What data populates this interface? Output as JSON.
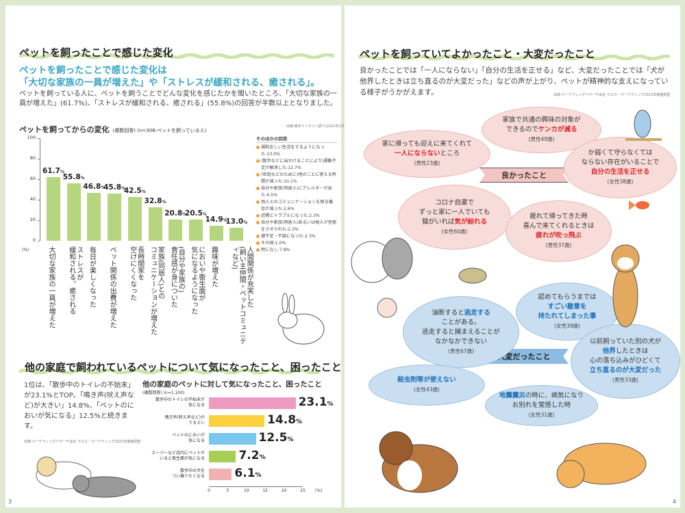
{
  "left": {
    "title": "ペットを飼ったことで感じた変化",
    "lead": "ペットを飼ったことで感じた変化は\n「大切な家族の一員が増えた」や「ストレスが緩和される、癒される」。",
    "body": "ペットを飼っている人に、ペットを飼うことでどんな変化を感じたかを聞いたところ、「大切な家族の一員が増えた」(61.7%)、「ストレスが緩和される、癒される」(55.8%)の回答が半数以上となりました。",
    "source": "出典:楽天インサイト調べ(2021年1月)",
    "chart_title": "ペットを飼ってからの変化",
    "chart_note": "(複数回答) (n=308:ペットを飼っている人)",
    "other_title": "そのほかの回答",
    "other_items": [
      "規則正しい生活をするようになった:13.0%",
      "(散歩などに出かけることにより)運動不足が解消した:12.7%",
      "(世話などのために)他のことに使える時間が減った:10.1%",
      "自分や家族(同居人)にアレルギーが出た:4.5%",
      "他人とのコミュニケーションを取る機会が減った:2.6%",
      "近隣とトラブルになった:2.3%",
      "自分や家族(同居人)あるいは他人が怪我をさせられた:2.3%",
      "寝不足・不調になった:2.3%",
      "その他:1.0%",
      "特になし:7.8%"
    ],
    "section2_title": "他の家庭で飼われているペットについて気になったこと、困ったこと",
    "section2_body": "1位は、「散歩中のトイレの不始末」が23.1%とTOP。「鳴き声(吠え声など)が大きい」14.8%、「ペットのにおいが気になる」12.5%と続きます。",
    "section2_source": "出典:マーケティングリサーチ会社 クロス・マーケティング2021年実施調査",
    "chart2_title": "他の家庭のペットに対して気になったこと、困ったこと",
    "chart2_note": "(複数回答) (n=1,100)",
    "page_number": "3"
  },
  "chart_data": [
    {
      "type": "bar",
      "title": "ペットを飼ってからの変化",
      "ylabel": "(%)",
      "ylim": [
        0,
        100
      ],
      "yticks": [
        "0",
        "20",
        "40",
        "60",
        "80",
        "100"
      ],
      "categories": [
        "大切な家族の一員が増えた",
        "ストレスが\n緩和される、癒される",
        "毎日が楽しくなった",
        "ペット関係の出費が増えた",
        "長時間家を\n空けにくくなった",
        "家族(同居人)との\nコミュニケーションが増えた",
        "(自分や家族の)\n責任感が身についた",
        "においや衛生面が\n気になるようになった",
        "趣味が増えた",
        "人間関係が充実した\n(飼い主仲間・ペットコミュニティなど)"
      ],
      "values": [
        61.7,
        55.8,
        46.8,
        45.8,
        42.5,
        32.8,
        20.8,
        20.5,
        14.9,
        13.0
      ],
      "labels": [
        "61.7",
        "55.8",
        "46.8",
        "45.8",
        "42.5",
        "32.8",
        "20.8",
        "20.5",
        "14.9",
        "13.0"
      ],
      "unit": "%",
      "color": "#b5d67f"
    },
    {
      "type": "bar",
      "orientation": "horizontal",
      "title": "他の家庭のペットに対して気になったこと、困ったこと",
      "xlabel": "(%)",
      "xlim": [
        0,
        25
      ],
      "xticks": [
        "0",
        "5",
        "10",
        "15",
        "20",
        "25"
      ],
      "categories": [
        "散歩中のトイレの不始末が\n気になる",
        "鳴き声(吠え声など)が\nうるさい",
        "ペットのにおいが\n気になる",
        "スーパーなど店内にペットが\nいると衛生面が気になる",
        "散歩中の犬を\nつい撫でたくなる"
      ],
      "values": [
        23.1,
        14.8,
        12.5,
        7.2,
        6.1
      ],
      "labels": [
        "23.1",
        "14.8",
        "12.5",
        "7.2",
        "6.1"
      ],
      "unit": "%",
      "colors": [
        "#ef9ac0",
        "#fbd03f",
        "#79c6ee",
        "#a6cf55",
        "#f2b1b1"
      ]
    }
  ],
  "right": {
    "title": "ペットを飼っていてよかったこと・大変だったこと",
    "body": "良かったことでは「一人にならない」「自分の生活を正せる」など、大変だったことでは「犬が他界したときは立ち直るのが大変だった」などの声が上がり、ペットが精神的な支えになっている様子がうかがえます。",
    "source": "出典:マーケティングリサーチ会社 クロス・マーケティング2021年実施調査",
    "good_label": "良かったこと",
    "bad_label": "大変だったこと",
    "good": [
      {
        "pre": "家族で共通の興味の対象が\nできるので",
        "hl": "ケンカが減る",
        "post": "",
        "who": "(男性49歳)"
      },
      {
        "pre": "家に帰っても迎えに来てくれて\n",
        "hl": "一人にならない",
        "post": "ところ",
        "who": "(男性23歳)"
      },
      {
        "pre": "か弱くて守らなくては\nならない存在がいることで\n",
        "hl": "自分の生活を正せる",
        "post": "",
        "who": "(女性38歳)"
      },
      {
        "pre": "コロナ自粛で\nずっと家に一人でいても\n猫がいれば",
        "hl": "気が紛れる",
        "post": "",
        "who": "(女性60歳)"
      },
      {
        "pre": "疲れて帰ってきた時\n喜んで来てくれるときは\n",
        "hl": "疲れが吹っ飛ぶ",
        "post": "",
        "who": "(男性37歳)"
      }
    ],
    "bad": [
      {
        "pre": "油断すると",
        "hl": "逃走する",
        "post": "\nことがある。\n逃走すると捕まえることが\nなかなかできない",
        "who": "(男性67歳)"
      },
      {
        "pre": "認めてもらうまでは\n",
        "hl": "すごい敵意を\n持たれてしまった事",
        "post": "",
        "who": "(女性39歳)"
      },
      {
        "pre": "以前飼っていた別の犬が\n",
        "hl": "他界",
        "post": "したときは\n心の落ち込みがひどくて\n",
        "hl2": "立ち直るのが大変だった",
        "who": "(男性33歳)"
      },
      {
        "pre": "",
        "hl": "殺虫剤等が使えない",
        "post": "",
        "who": "(女性43歳)"
      },
      {
        "pre": "",
        "hl": "地震震災",
        "post": "の時に、病気になり\nお別れを覚悟した時",
        "who": "(女性31歳)"
      }
    ],
    "page_number": "4"
  },
  "colors": {
    "accent_blue": "#39a6c4",
    "good_red": "#e02222",
    "bad_blue": "#1e6fb8",
    "bar_green": "#b5d67f",
    "wave": "#cfe3a8"
  }
}
